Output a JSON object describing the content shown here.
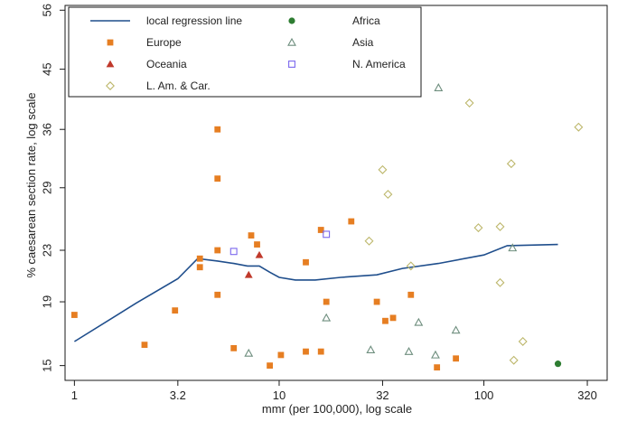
{
  "chart_data": {
    "type": "scatter",
    "title": "",
    "xlabel": "mmr (per 100,000), log scale",
    "ylabel": "% caesarean section rate, log scale",
    "x_scale": "log",
    "y_scale": "log",
    "xlim": [
      0.9,
      400
    ],
    "ylim": [
      14.2,
      57
    ],
    "x_ticks": [
      1,
      3.2,
      10,
      32,
      100,
      320
    ],
    "x_tick_labels": [
      "1",
      "3.2",
      "10",
      "32",
      "100",
      "320"
    ],
    "y_ticks": [
      15,
      19,
      23,
      29,
      36,
      45,
      56
    ],
    "y_tick_labels": [
      "15",
      "19",
      "23",
      "29",
      "36",
      "45",
      "56"
    ],
    "grid": false,
    "legend_position": "top",
    "series": [
      {
        "name": "local regression line",
        "kind": "line",
        "color": "#1f4e8c",
        "points": [
          [
            1,
            16.4
          ],
          [
            2,
            18.9
          ],
          [
            3.2,
            20.7
          ],
          [
            4,
            22.3
          ],
          [
            5,
            22.1
          ],
          [
            6,
            21.9
          ],
          [
            7,
            21.7
          ],
          [
            8,
            21.7
          ],
          [
            9,
            21.2
          ],
          [
            10,
            20.8
          ],
          [
            12,
            20.6
          ],
          [
            15,
            20.6
          ],
          [
            20,
            20.8
          ],
          [
            30,
            21.0
          ],
          [
            40,
            21.5
          ],
          [
            60,
            21.9
          ],
          [
            100,
            22.6
          ],
          [
            130,
            23.4
          ],
          [
            230,
            23.5
          ]
        ]
      },
      {
        "name": "Europe",
        "marker": "square",
        "color": "#e67e22",
        "points": [
          [
            1,
            18.1
          ],
          [
            2.2,
            16.2
          ],
          [
            3.1,
            18.4
          ],
          [
            4.1,
            21.6
          ],
          [
            4.1,
            22.3
          ],
          [
            5,
            19.5
          ],
          [
            5,
            23.0
          ],
          [
            5,
            30.0
          ],
          [
            5,
            36.0
          ],
          [
            6,
            16.0
          ],
          [
            7.3,
            24.3
          ],
          [
            7.8,
            23.5
          ],
          [
            9,
            15.0
          ],
          [
            10.2,
            15.6
          ],
          [
            13.5,
            15.8
          ],
          [
            13.5,
            22.0
          ],
          [
            16,
            15.8
          ],
          [
            16,
            24.8
          ],
          [
            17,
            19.0
          ],
          [
            22.5,
            25.6
          ],
          [
            30,
            19.0
          ],
          [
            33,
            17.7
          ],
          [
            36,
            17.9
          ],
          [
            44,
            19.5
          ],
          [
            59,
            14.9
          ],
          [
            73,
            15.4
          ]
        ]
      },
      {
        "name": "Oceania",
        "marker": "triangle-filled",
        "color": "#c0392b",
        "points": [
          [
            7.1,
            21.0
          ],
          [
            8,
            22.6
          ]
        ]
      },
      {
        "name": "L. Am. & Car.",
        "marker": "diamond-open",
        "color": "#bdb76b",
        "points": [
          [
            27.5,
            23.8
          ],
          [
            32,
            31.0
          ],
          [
            34,
            28.3
          ],
          [
            44,
            21.7
          ],
          [
            85,
            39.7
          ],
          [
            94,
            25.0
          ],
          [
            120,
            25.1
          ],
          [
            120,
            20.4
          ],
          [
            136,
            31.7
          ],
          [
            140,
            15.3
          ],
          [
            155,
            16.4
          ],
          [
            290,
            36.3
          ]
        ]
      },
      {
        "name": "Africa",
        "marker": "circle-filled",
        "color": "#2e7d32",
        "points": [
          [
            230,
            15.1
          ]
        ]
      },
      {
        "name": "Asia",
        "marker": "triangle-open",
        "color": "#6e8e7e",
        "points": [
          [
            7.1,
            15.7
          ],
          [
            17,
            17.9
          ],
          [
            28,
            15.9
          ],
          [
            43,
            15.8
          ],
          [
            48,
            17.6
          ],
          [
            58,
            15.6
          ],
          [
            60,
            42.0
          ],
          [
            73,
            17.1
          ],
          [
            138,
            23.2
          ]
        ]
      },
      {
        "name": "N. America",
        "marker": "square-open",
        "color": "#7b68ee",
        "points": [
          [
            6,
            22.9
          ],
          [
            17,
            24.4
          ]
        ]
      }
    ]
  },
  "legend": [
    {
      "label": "local regression line",
      "marker": "line",
      "color": "#1f4e8c"
    },
    {
      "label": "Africa",
      "marker": "circle-filled",
      "color": "#2e7d32"
    },
    {
      "label": "Europe",
      "marker": "square",
      "color": "#e67e22"
    },
    {
      "label": "Asia",
      "marker": "triangle-open",
      "color": "#6e8e7e"
    },
    {
      "label": "Oceania",
      "marker": "triangle-filled",
      "color": "#c0392b"
    },
    {
      "label": "N. America",
      "marker": "square-open",
      "color": "#7b68ee"
    },
    {
      "label": "L. Am. & Car.",
      "marker": "diamond-open",
      "color": "#bdb76b"
    }
  ]
}
